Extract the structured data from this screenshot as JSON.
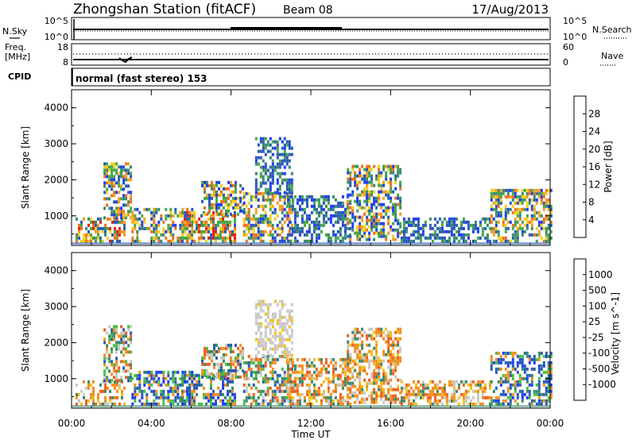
{
  "header": {
    "title": "Zhongshan Station (fitACF)",
    "beam": "Beam 08",
    "date": "17/Aug/2013"
  },
  "top_panels": {
    "nsky_label": "N.Sky",
    "nsky_ticks": [
      "10^5",
      "10^0"
    ],
    "nsearch_label": "N.Search",
    "nsearch_ticks": [
      "10^5",
      "10^0"
    ],
    "freq_label_1": "Freq.",
    "freq_label_2": "[MHz]",
    "freq_ticks": [
      "18",
      "8"
    ],
    "nave_label": "Nave",
    "nave_ticks": [
      "60",
      "0"
    ],
    "cpid_label": "CPID",
    "cpid_text": "normal (fast stereo) 153"
  },
  "x_axis": {
    "label": "Time UT",
    "ticks": [
      "00:00",
      "04:00",
      "08:00",
      "12:00",
      "16:00",
      "20:00",
      "00:00"
    ],
    "range_hours": [
      0,
      24
    ]
  },
  "chart_data": [
    {
      "type": "heatmap",
      "ylabel": "Slant Range [km]",
      "yticks": [
        "1000",
        "2000",
        "3000",
        "4000"
      ],
      "ylim": [
        180,
        4500
      ],
      "xlim_hours": [
        0,
        24
      ],
      "colorbar": {
        "label": "Power [dB]",
        "ticks": [
          "4",
          "8",
          "12",
          "16",
          "20",
          "24",
          "28"
        ],
        "range": [
          0,
          32
        ],
        "colors": [
          "#1f3df0",
          "#2a5bb3",
          "#3a8a6a",
          "#46a64a",
          "#f0d020",
          "#f0a020",
          "#ee7020",
          "#e22010"
        ]
      },
      "regions": [
        {
          "t0": 0.2,
          "t1": 2.6,
          "r0": 250,
          "r1": 900,
          "level": "high"
        },
        {
          "t0": 1.6,
          "t1": 3.0,
          "r0": 900,
          "r1": 2400,
          "level": "mid"
        },
        {
          "t0": 3.0,
          "t1": 6.0,
          "r0": 250,
          "r1": 1200,
          "level": "mid"
        },
        {
          "t0": 5.5,
          "t1": 8.2,
          "r0": 250,
          "r1": 1100,
          "level": "high"
        },
        {
          "t0": 6.5,
          "t1": 8.6,
          "r0": 1000,
          "r1": 1900,
          "level": "mid"
        },
        {
          "t0": 8.6,
          "t1": 11.0,
          "r0": 250,
          "r1": 1600,
          "level": "mid"
        },
        {
          "t0": 9.2,
          "t1": 11.0,
          "r0": 1600,
          "r1": 3100,
          "level": "low"
        },
        {
          "t0": 10.8,
          "t1": 14.0,
          "r0": 250,
          "r1": 1500,
          "level": "low"
        },
        {
          "t0": 13.8,
          "t1": 16.5,
          "r0": 300,
          "r1": 2400,
          "level": "mid"
        },
        {
          "t0": 16.5,
          "t1": 21.0,
          "r0": 250,
          "r1": 900,
          "level": "low"
        },
        {
          "t0": 21.0,
          "t1": 24.0,
          "r0": 250,
          "r1": 1700,
          "level": "mid"
        }
      ]
    },
    {
      "type": "heatmap",
      "ylabel": "Slant Range [km]",
      "yticks": [
        "1000",
        "2000",
        "3000",
        "4000"
      ],
      "ylim": [
        180,
        4500
      ],
      "xlim_hours": [
        0,
        24
      ],
      "colorbar": {
        "label": "Velocity [m s^-1]",
        "ticks": [
          "1000",
          "500",
          "100",
          "25",
          "-25",
          "-100",
          "-500",
          "-1000"
        ],
        "colors": [
          "#1f3df0",
          "#2a5bb3",
          "#3a8a6a",
          "#46c040",
          "#c8c8c8",
          "#f0c020",
          "#f09020",
          "#ee6020",
          "#e21010"
        ]
      },
      "regions": [
        {
          "t0": 0.2,
          "t1": 2.6,
          "r0": 250,
          "r1": 900,
          "level": "neg"
        },
        {
          "t0": 1.6,
          "t1": 3.0,
          "r0": 900,
          "r1": 2400,
          "level": "mix"
        },
        {
          "t0": 3.0,
          "t1": 6.0,
          "r0": 250,
          "r1": 1200,
          "level": "pos"
        },
        {
          "t0": 5.5,
          "t1": 8.2,
          "r0": 250,
          "r1": 1100,
          "level": "pos"
        },
        {
          "t0": 6.5,
          "t1": 8.6,
          "r0": 1000,
          "r1": 1900,
          "level": "mix"
        },
        {
          "t0": 8.6,
          "t1": 11.0,
          "r0": 250,
          "r1": 1600,
          "level": "mix"
        },
        {
          "t0": 9.2,
          "t1": 11.0,
          "r0": 1600,
          "r1": 3100,
          "level": "zero"
        },
        {
          "t0": 10.8,
          "t1": 14.0,
          "r0": 250,
          "r1": 1500,
          "level": "neg"
        },
        {
          "t0": 13.8,
          "t1": 16.5,
          "r0": 300,
          "r1": 2400,
          "level": "neg"
        },
        {
          "t0": 16.5,
          "t1": 21.0,
          "r0": 250,
          "r1": 900,
          "level": "neg"
        },
        {
          "t0": 21.0,
          "t1": 24.0,
          "r0": 250,
          "r1": 1700,
          "level": "pos"
        }
      ]
    }
  ]
}
